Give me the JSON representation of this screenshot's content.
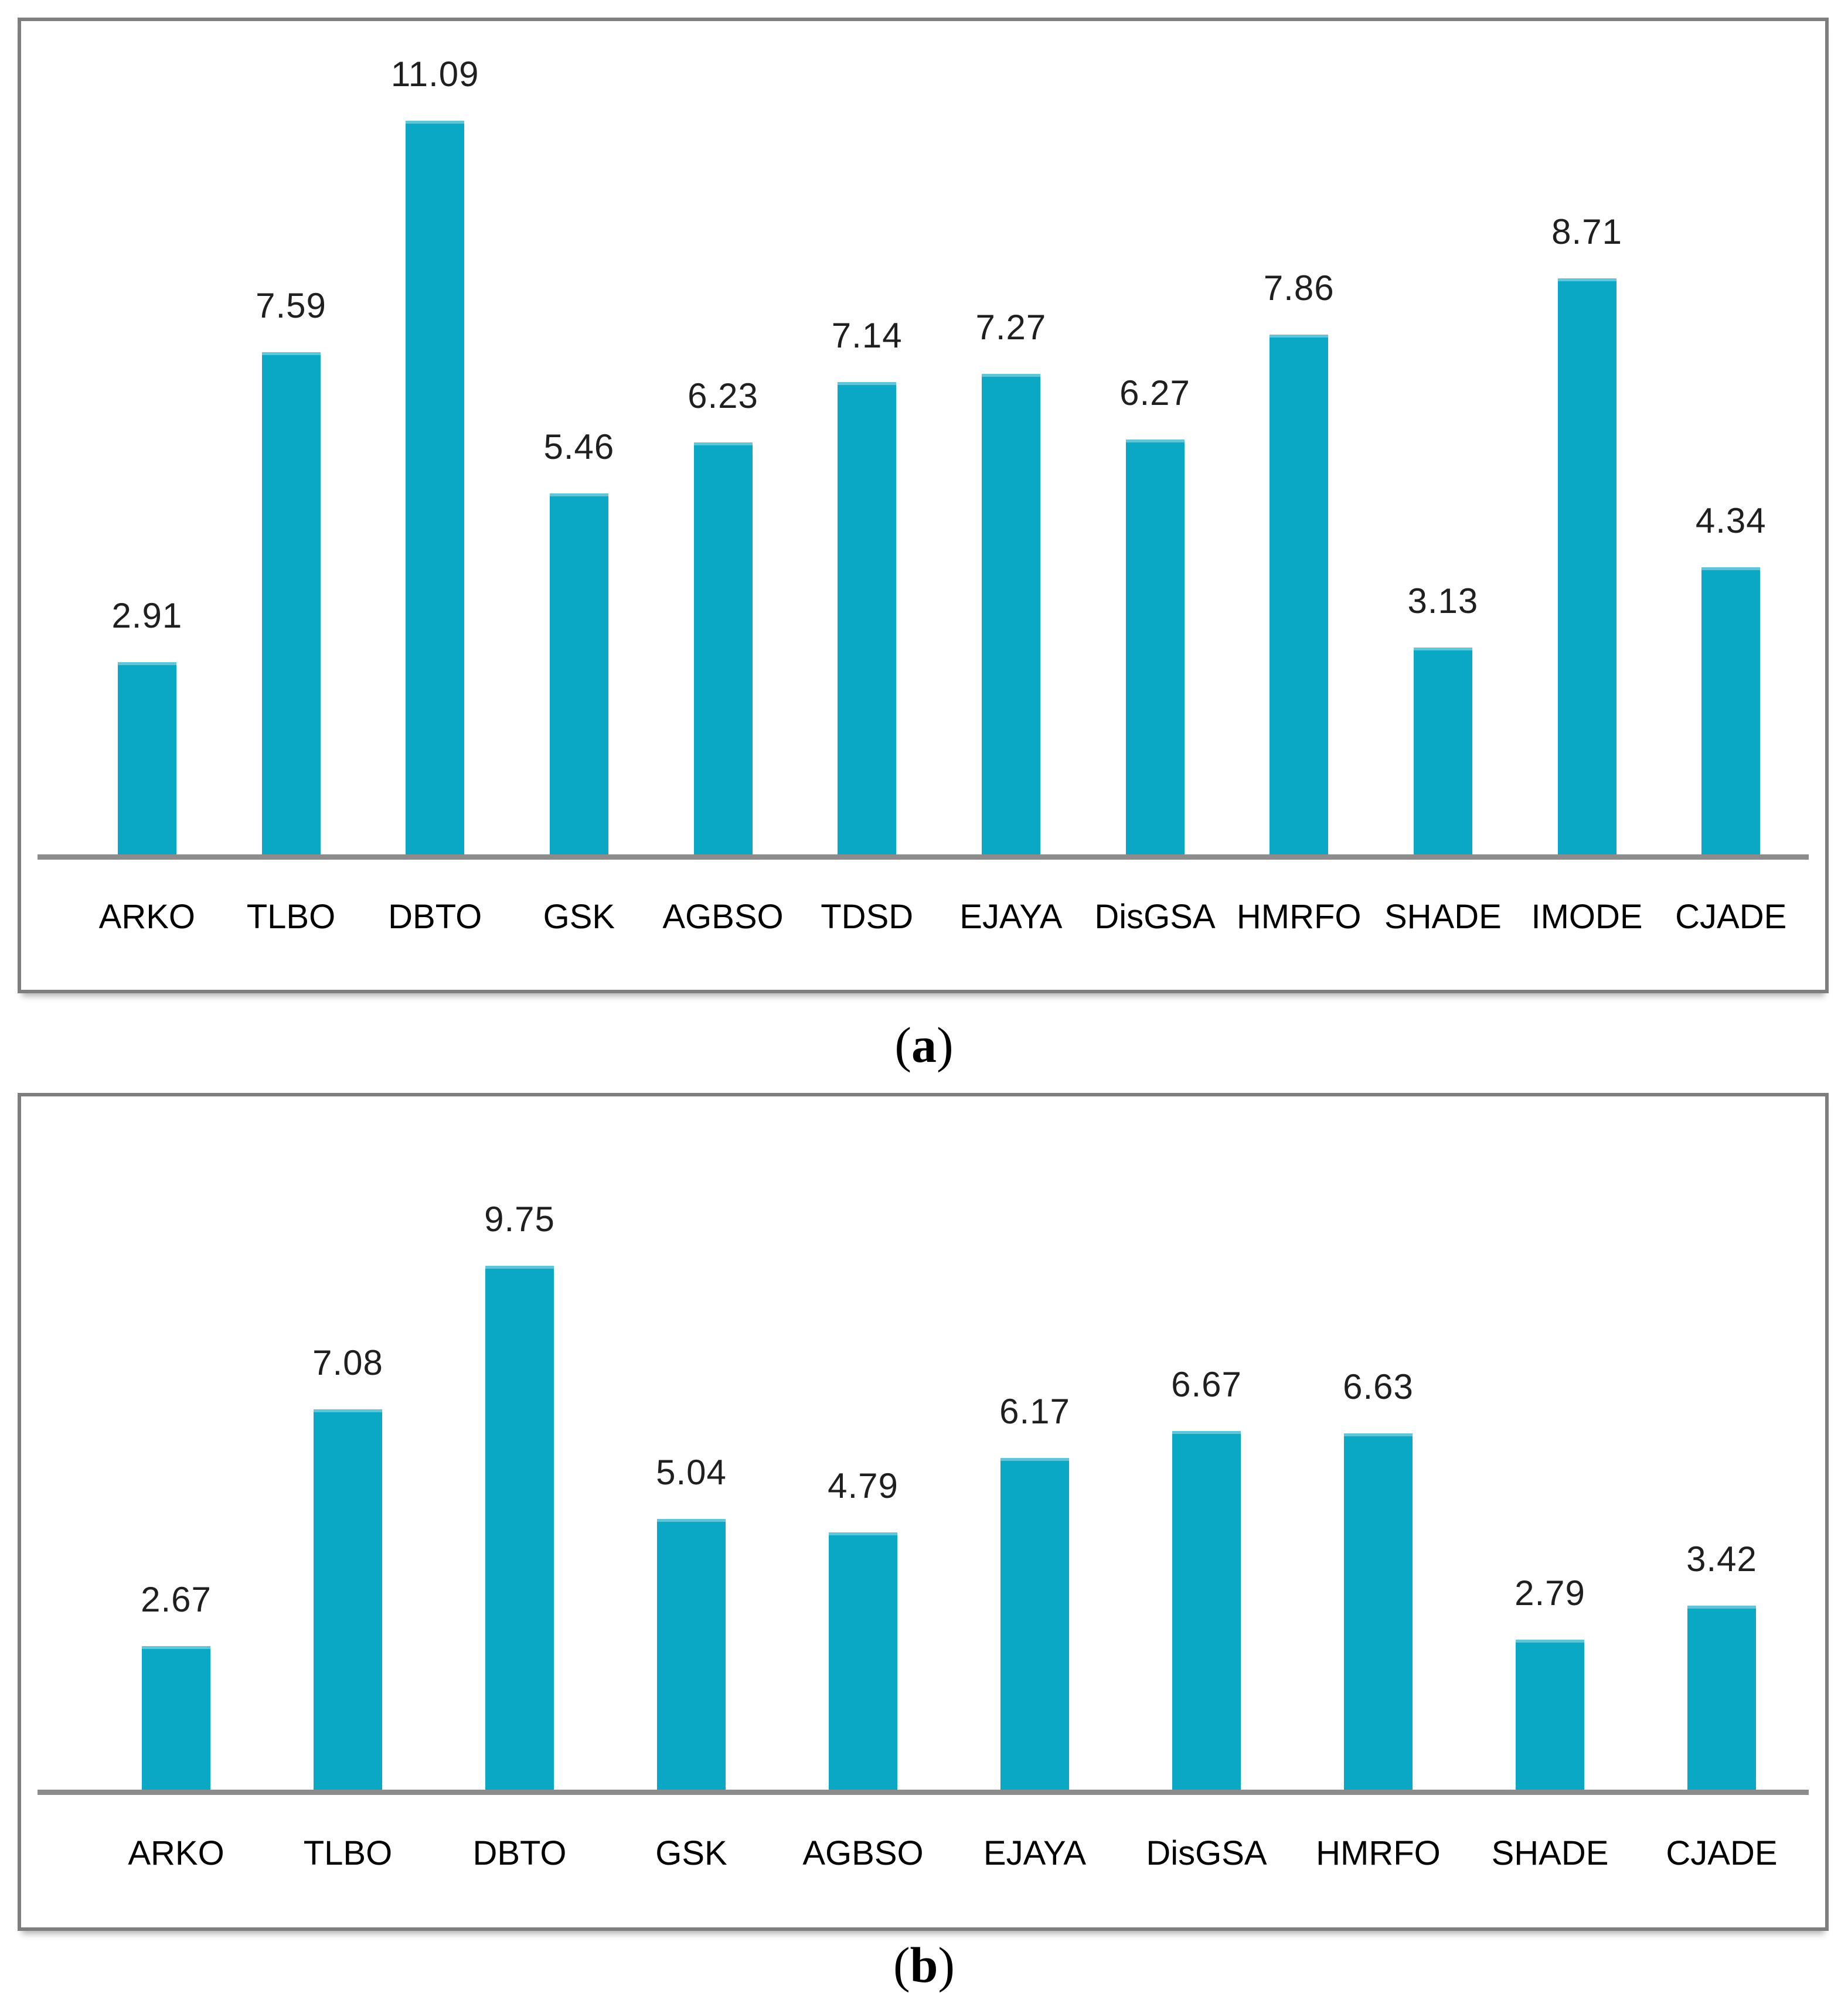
{
  "page": {
    "background": "#ffffff"
  },
  "captions": {
    "a": {
      "open": "(",
      "letter": "a",
      "close": ")"
    },
    "b": {
      "open": "(",
      "letter": "b",
      "close": ")"
    }
  },
  "chart_data": [
    {
      "panel": "a",
      "type": "bar",
      "title": "",
      "xlabel": "",
      "ylabel": "",
      "categories": [
        "ARKO",
        "TLBO",
        "DBTO",
        "GSK",
        "AGBSO",
        "TDSD",
        "EJAYA",
        "DisGSA",
        "HMRFO",
        "SHADE",
        "IMODE",
        "CJADE"
      ],
      "values": [
        2.91,
        7.59,
        11.09,
        5.46,
        6.23,
        7.14,
        7.27,
        6.27,
        7.86,
        3.13,
        8.71,
        4.34
      ],
      "value_labels": [
        "2.91",
        "7.59",
        "11.09",
        "5.46",
        "6.23",
        "7.14",
        "7.27",
        "6.27",
        "7.86",
        "3.13",
        "8.71",
        "4.34"
      ],
      "ylim": [
        0,
        12.6
      ],
      "grid": false,
      "legend": null,
      "bar_color": "#0aa8c5",
      "axis_color": "#8c8c8c",
      "value_label_color": "#1f1f1f",
      "category_label_color": "#000000"
    },
    {
      "panel": "b",
      "type": "bar",
      "title": "",
      "xlabel": "",
      "ylabel": "",
      "categories": [
        "ARKO",
        "TLBO",
        "DBTO",
        "GSK",
        "AGBSO",
        "EJAYA",
        "DisGSA",
        "HMRFO",
        "SHADE",
        "CJADE"
      ],
      "values": [
        2.67,
        7.08,
        9.75,
        5.04,
        4.79,
        6.17,
        6.67,
        6.63,
        2.79,
        3.42
      ],
      "value_labels": [
        "2.67",
        "7.08",
        "9.75",
        "5.04",
        "4.79",
        "6.17",
        "6.67",
        "6.63",
        "2.79",
        "3.42"
      ],
      "ylim": [
        0,
        12.9
      ],
      "grid": false,
      "legend": null,
      "bar_color": "#0aa8c5",
      "axis_color": "#8c8c8c",
      "value_label_color": "#1f1f1f",
      "category_label_color": "#000000"
    }
  ]
}
